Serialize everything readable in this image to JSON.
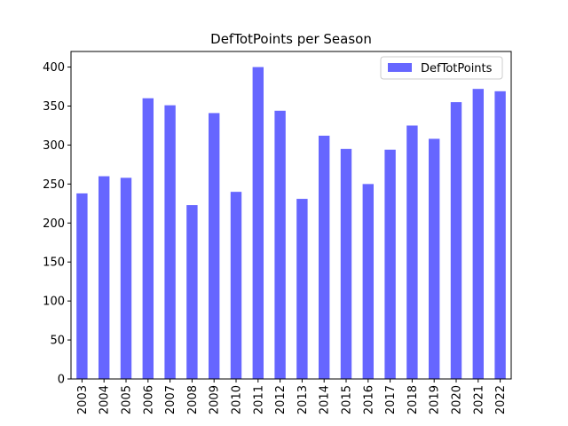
{
  "chart_data": {
    "type": "bar",
    "title": "DefTotPoints per Season",
    "categories": [
      "2003",
      "2004",
      "2005",
      "2006",
      "2007",
      "2008",
      "2009",
      "2010",
      "2011",
      "2012",
      "2013",
      "2014",
      "2015",
      "2016",
      "2017",
      "2018",
      "2019",
      "2020",
      "2021",
      "2022"
    ],
    "series": [
      {
        "name": "DefTotPoints",
        "color": "#6666ff",
        "values": [
          238,
          260,
          258,
          360,
          351,
          223,
          341,
          240,
          400,
          344,
          231,
          312,
          295,
          250,
          294,
          325,
          308,
          355,
          372,
          369
        ]
      }
    ],
    "ylim": [
      0,
      420
    ],
    "yticks": [
      0,
      50,
      100,
      150,
      200,
      250,
      300,
      350,
      400
    ],
    "legend": "upper-right"
  }
}
